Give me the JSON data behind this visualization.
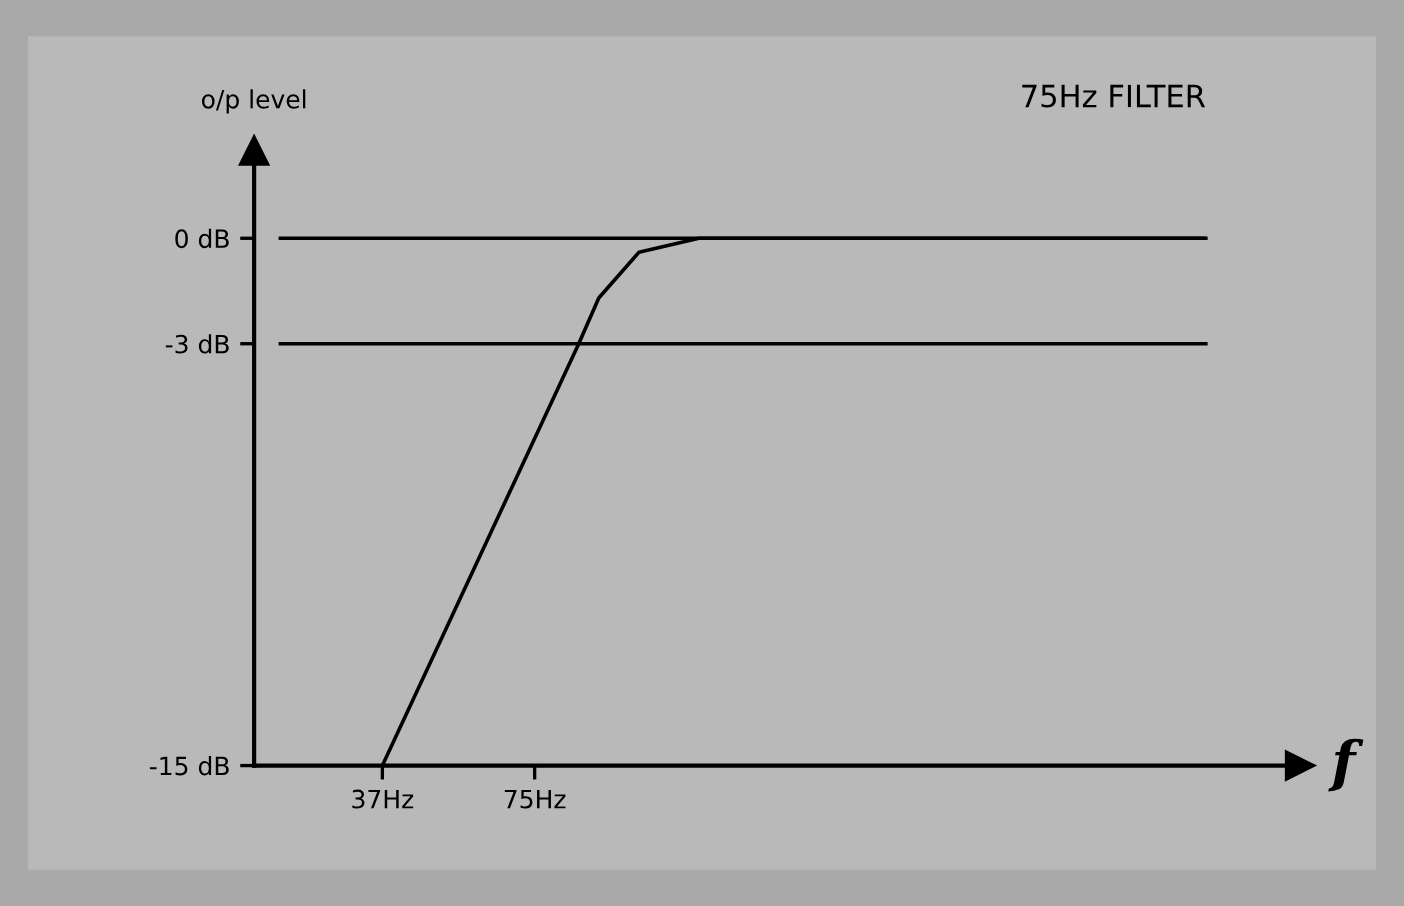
{
  "chart_data": {
    "type": "line",
    "title": "75Hz FILTER",
    "xlabel": "f",
    "ylabel": "o/p level",
    "x": [
      37,
      86,
      91,
      101,
      116,
      242
    ],
    "series": [
      {
        "color": "#000000",
        "values": [
          -15,
          -3,
          -1.7,
          -0.4,
          0,
          0
        ]
      }
    ],
    "xlim": [
      5,
      266
    ],
    "ylim": [
      -15,
      2.5
    ],
    "xticks": [
      {
        "value": 37,
        "label": "37Hz"
      },
      {
        "value": 75,
        "label": "75Hz"
      }
    ],
    "yticks": [
      {
        "value": 0,
        "label": "0 dB"
      },
      {
        "value": -3,
        "label": "-3 dB"
      },
      {
        "value": -15,
        "label": "-15 dB"
      }
    ],
    "ref_lines": [
      {
        "axis": "y",
        "value": 0,
        "color": "#000000"
      },
      {
        "axis": "y",
        "value": -3,
        "color": "#000000"
      }
    ],
    "grid": false
  }
}
